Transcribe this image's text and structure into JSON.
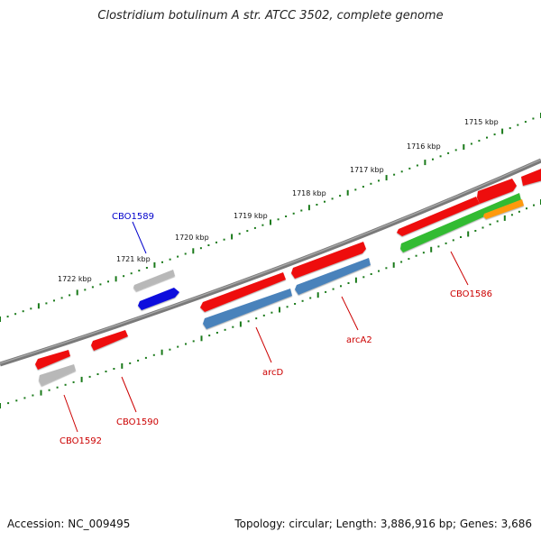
{
  "title": "Clostridium botulinum A str. ATCC 3502, complete genome",
  "footer": {
    "accession": "Accession: NC_009495",
    "summary": "Topology: circular; Length: 3,886,916 bp; Genes: 3,686"
  },
  "colors": {
    "backbone": "#777777",
    "tick": "#1a7a1a",
    "gene_red": "#ee1111",
    "gene_gray": "#b8b8b8",
    "gene_blue": "#1010dd",
    "gene_steel": "#4a82bb",
    "gene_green": "#33bb33",
    "gene_orange": "#ff9911",
    "label_red": "#cc0000",
    "label_blue": "#0000cc"
  },
  "scale_labels": [
    "1715 kbp",
    "1716 kbp",
    "1717 kbp",
    "1718 kbp",
    "1719 kbp",
    "1720 kbp",
    "1721 kbp",
    "1722 kbp"
  ],
  "gene_labels": [
    {
      "name": "CBO1589",
      "color": "blue"
    },
    {
      "name": "CBO1586",
      "color": "red"
    },
    {
      "name": "arcA2",
      "color": "red"
    },
    {
      "name": "arcD",
      "color": "red"
    },
    {
      "name": "CBO1590",
      "color": "red"
    },
    {
      "name": "CBO1592",
      "color": "red"
    }
  ]
}
